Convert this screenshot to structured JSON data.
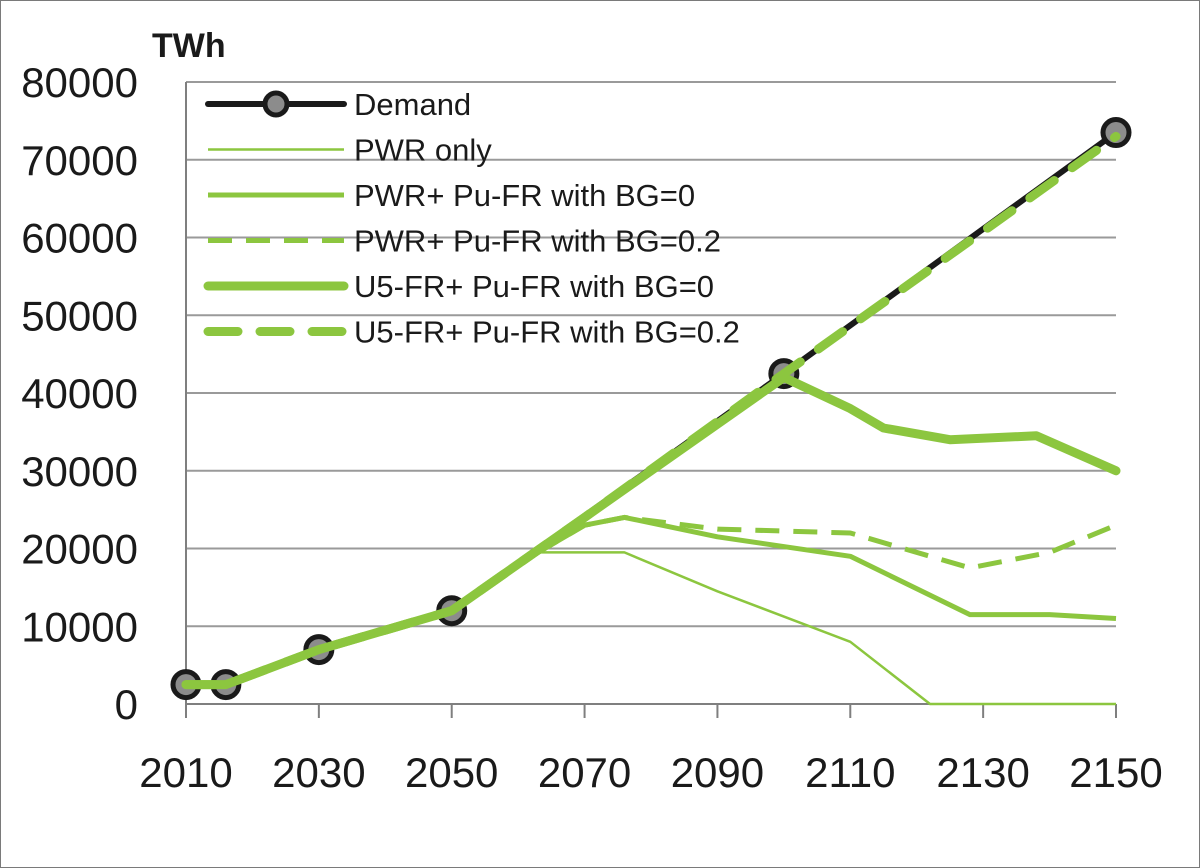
{
  "chart_data": {
    "type": "line",
    "title": "",
    "ylabel": "TWh",
    "xlabel": "",
    "xlim": [
      2010,
      2150
    ],
    "ylim": [
      0,
      80000
    ],
    "x_ticks": [
      2010,
      2030,
      2050,
      2070,
      2090,
      2110,
      2130,
      2150
    ],
    "y_ticks": [
      0,
      10000,
      20000,
      30000,
      40000,
      50000,
      60000,
      70000,
      80000
    ],
    "grid": "horizontal",
    "legend_position": "top-left",
    "colors": {
      "demand": "#1a1a1a",
      "green": "#8cc63f",
      "grid": "#9a9a9a",
      "axis": "#7f7f7f"
    },
    "series": [
      {
        "name": "Demand",
        "style": "demand",
        "x": [
          2010,
          2016,
          2030,
          2050,
          2100,
          2150
        ],
        "values": [
          2500,
          2500,
          7000,
          12000,
          42500,
          73500
        ],
        "markers": true
      },
      {
        "name": "PWR only",
        "style": "thin",
        "x": [
          2010,
          2016,
          2030,
          2050,
          2063,
          2070,
          2076,
          2090,
          2110,
          2122,
          2130,
          2150
        ],
        "values": [
          2500,
          2500,
          7000,
          12000,
          19500,
          19500,
          19500,
          14500,
          8000,
          0,
          0,
          0
        ]
      },
      {
        "name": "PWR+ Pu-FR with BG=0",
        "style": "medium",
        "x": [
          2010,
          2016,
          2030,
          2050,
          2063,
          2070,
          2076,
          2090,
          2110,
          2128,
          2140,
          2150
        ],
        "values": [
          2500,
          2500,
          7000,
          12000,
          19500,
          23000,
          24000,
          21500,
          19000,
          11500,
          11500,
          11000
        ]
      },
      {
        "name": "PWR+ Pu-FR with BG=0.2",
        "style": "medium-dashed",
        "x": [
          2010,
          2016,
          2030,
          2050,
          2063,
          2070,
          2076,
          2090,
          2110,
          2128,
          2140,
          2150
        ],
        "values": [
          2500,
          2500,
          7000,
          12000,
          19500,
          23000,
          24000,
          22500,
          22000,
          17500,
          19500,
          23000
        ]
      },
      {
        "name": "U5-FR+ Pu-FR with BG=0",
        "style": "thick",
        "x": [
          2010,
          2016,
          2030,
          2050,
          2070,
          2100,
          2110,
          2115,
          2125,
          2138,
          2150
        ],
        "values": [
          2500,
          2500,
          7000,
          12000,
          24000,
          42000,
          38000,
          35500,
          34000,
          34500,
          30000
        ]
      },
      {
        "name": "U5-FR+ Pu-FR with BG=0.2",
        "style": "thick-dashed",
        "x": [
          2010,
          2016,
          2030,
          2050,
          2070,
          2100,
          2150
        ],
        "values": [
          2500,
          2500,
          7000,
          12000,
          24000,
          42500,
          73000
        ]
      }
    ]
  }
}
